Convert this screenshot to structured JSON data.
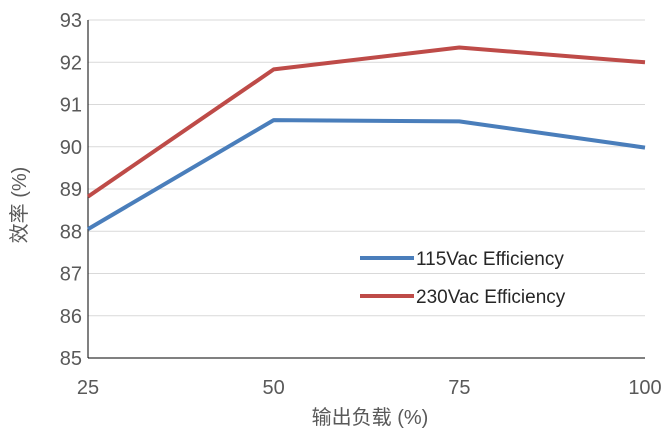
{
  "chart_data": {
    "type": "line",
    "title": "",
    "xlabel": "输出负载 (%)",
    "ylabel": "效率 (%)",
    "categories": [
      "25",
      "50",
      "75",
      "100"
    ],
    "x": [
      25,
      50,
      75,
      100
    ],
    "xlim": [
      25,
      100
    ],
    "ylim": [
      85,
      93
    ],
    "yticks": [
      "85",
      "86",
      "87",
      "88",
      "89",
      "90",
      "91",
      "92",
      "93"
    ],
    "grid": "horizontal",
    "legend_position": "lower-right",
    "series": [
      {
        "name": "115Vac Efficiency",
        "color": "#4a7ebb",
        "values": [
          88.05,
          90.63,
          90.6,
          89.98
        ]
      },
      {
        "name": "230Vac Efficiency",
        "color": "#be4b48",
        "values": [
          88.82,
          91.83,
          92.35,
          92.0
        ]
      }
    ]
  }
}
